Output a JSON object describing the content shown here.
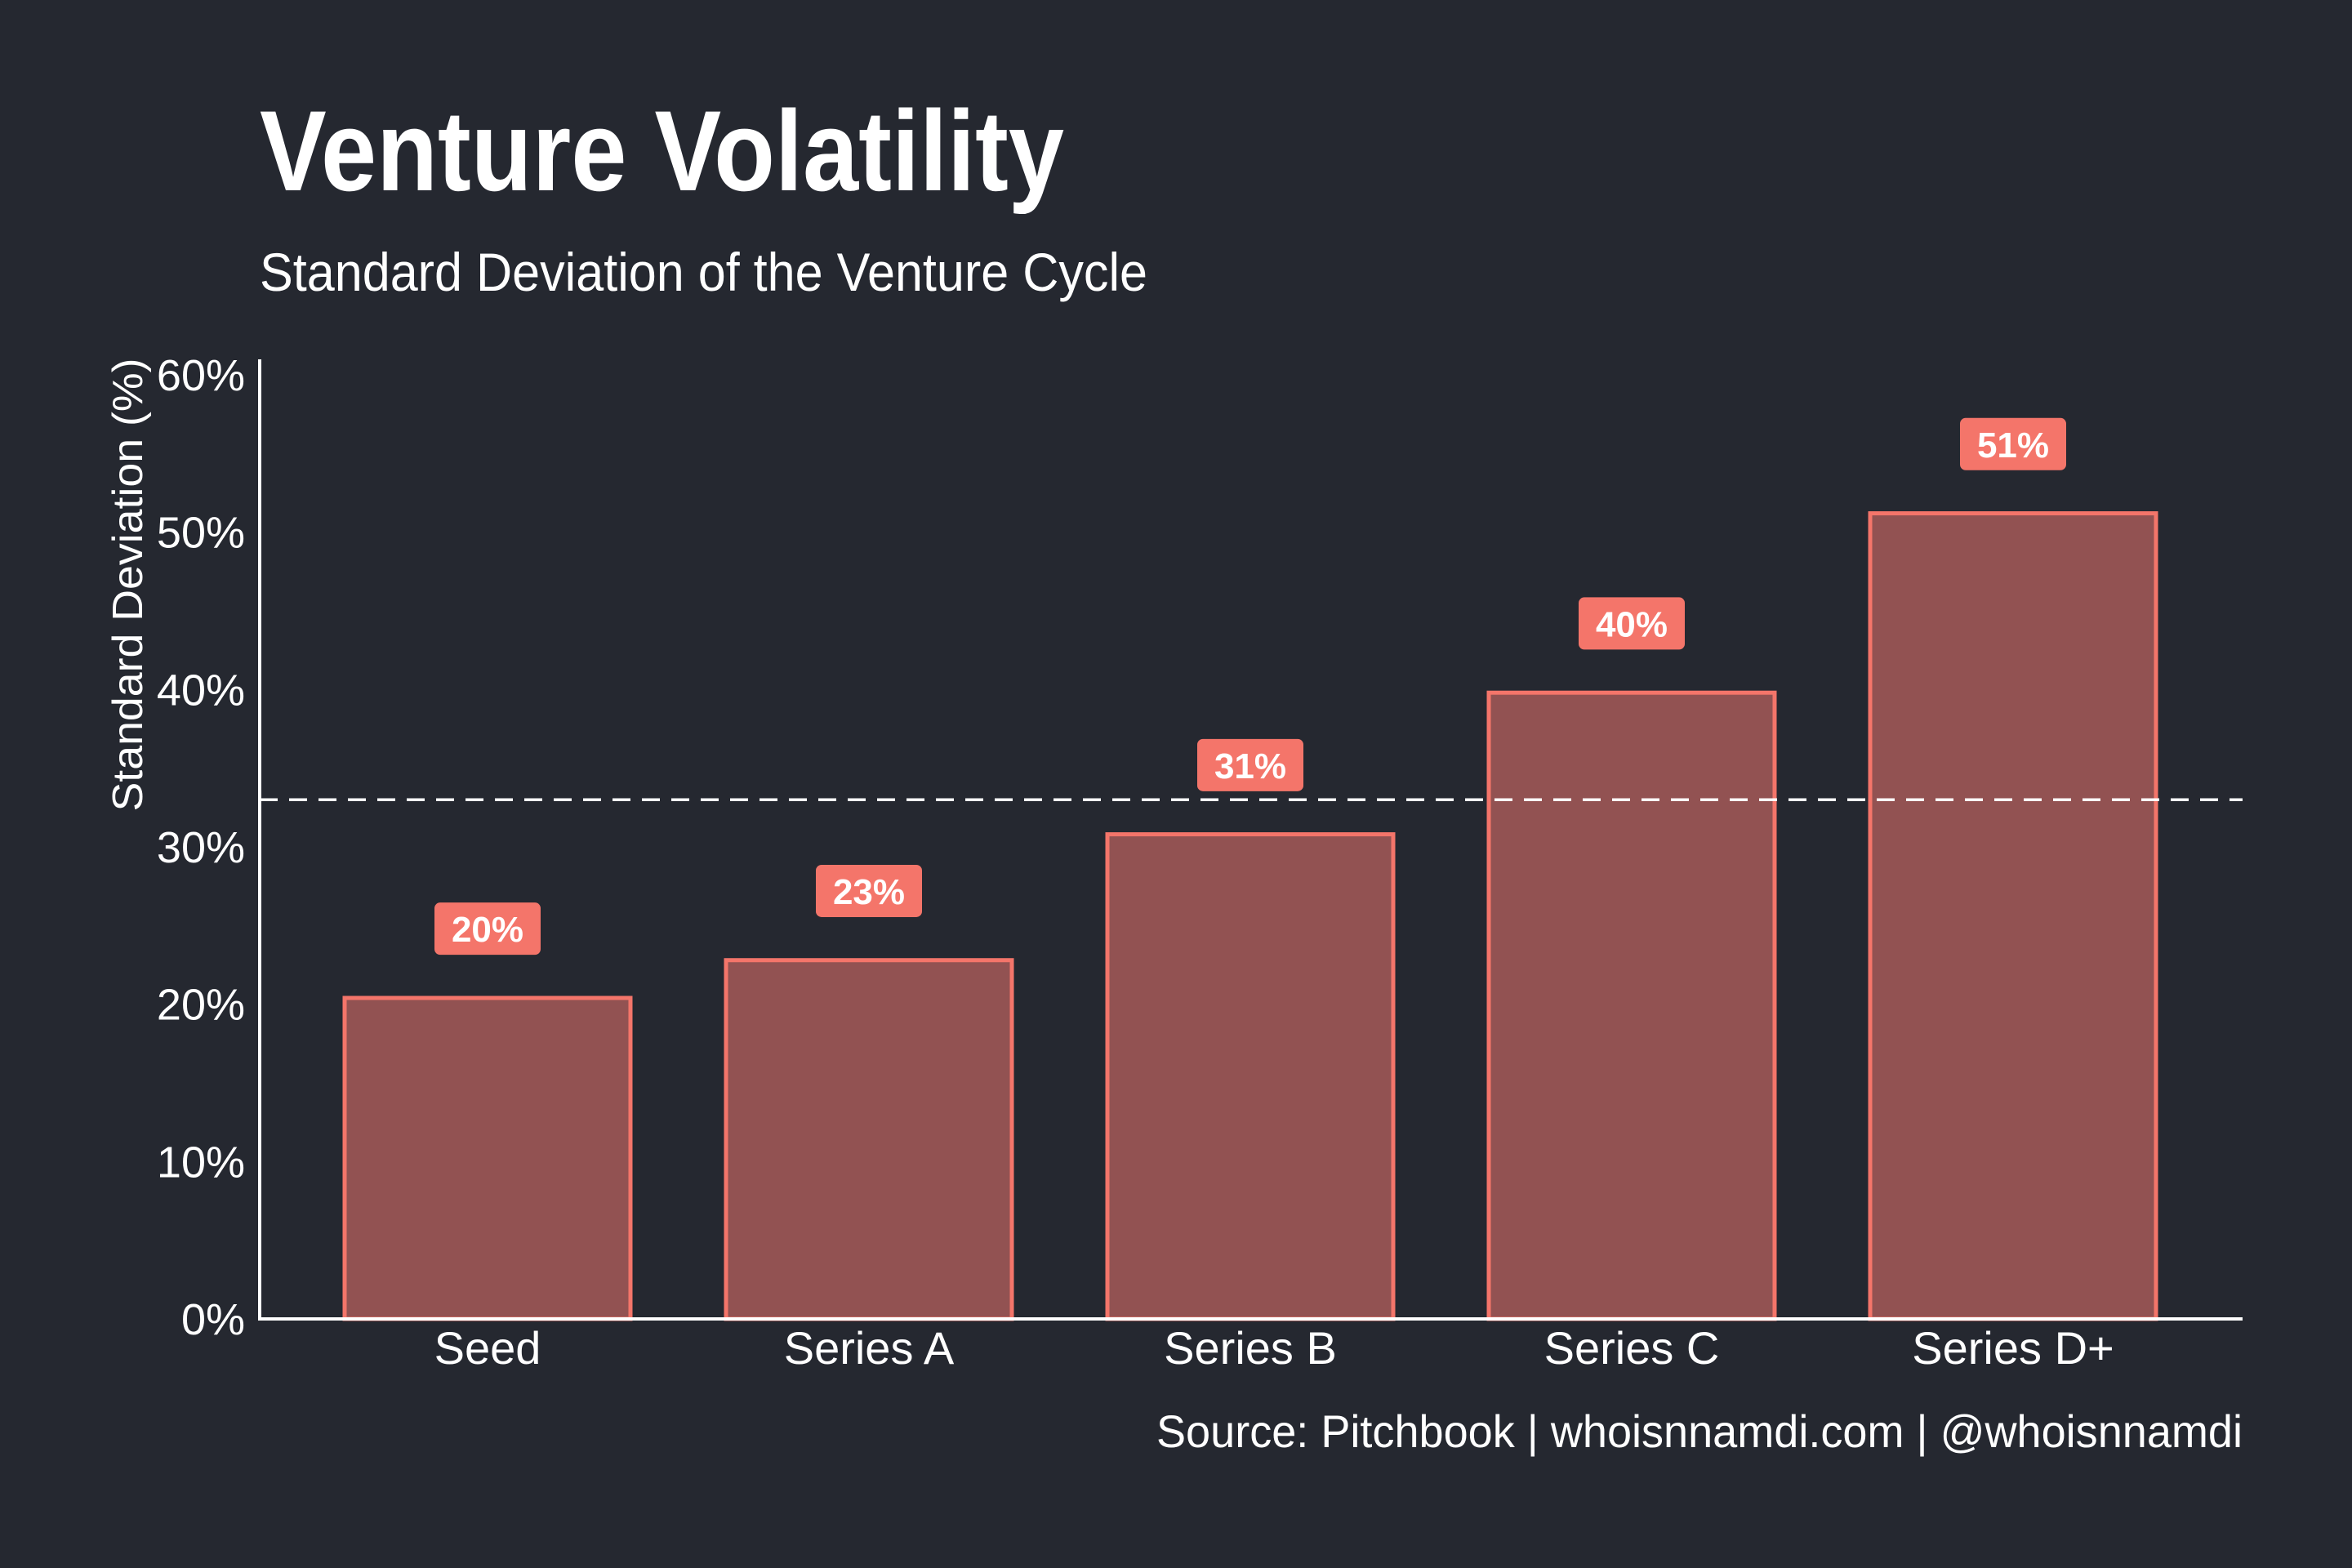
{
  "colors": {
    "background": "#252830",
    "bar_fill": "#925252",
    "bar_stroke": "#F4756A",
    "label_box": "#F4756A",
    "text": "#ffffff"
  },
  "chart_data": {
    "type": "bar",
    "title": "Venture Volatility",
    "subtitle": "Standard Deviation of the Venture Cycle",
    "xlabel": "",
    "ylabel": "Standard Deviation (%)",
    "categories": [
      "Seed",
      "Series A",
      "Series B",
      "Series C",
      "Series D+"
    ],
    "values": [
      20.4,
      22.8,
      30.8,
      39.8,
      51.2
    ],
    "data_labels": [
      "20%",
      "23%",
      "31%",
      "40%",
      "51%"
    ],
    "ylim": [
      0,
      60
    ],
    "yticks": [
      0,
      10,
      20,
      30,
      40,
      50,
      60
    ],
    "ytick_labels": [
      "0%",
      "10%",
      "20%",
      "30%",
      "40%",
      "50%",
      "60%"
    ],
    "reference_line": {
      "value": 33.0,
      "style": "dashed"
    },
    "grid": false,
    "source": "Source: Pitchbook | whoisnnamdi.com | @whoisnnamdi"
  }
}
